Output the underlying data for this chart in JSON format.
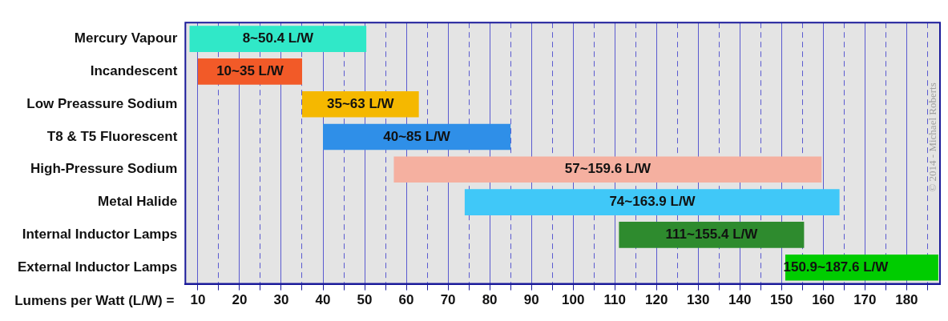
{
  "chart_data": {
    "type": "bar",
    "orientation": "horizontal",
    "xlabel": "Lumens per Watt (L/W) =",
    "categories": [
      "Mercury Vapour",
      "Incandescent",
      "Low Preassure Sodium",
      "T8 & T5 Fluorescent",
      "High-Pressure Sodium",
      "Metal Halide",
      "Internal Inductor Lamps",
      "External Inductor Lamps"
    ],
    "base": [
      8,
      10,
      35,
      40,
      57,
      74,
      111,
      150.9
    ],
    "values": [
      42.4,
      25,
      28,
      45,
      102.6,
      89.9,
      44.4,
      36.7
    ],
    "colors": [
      "#30e8c8",
      "#f25a28",
      "#f5b800",
      "#2f8fe8",
      "#f5b0a0",
      "#40c8f8",
      "#2e8b2e",
      "#00cc00"
    ],
    "xlim": [
      7,
      188
    ],
    "xticks": [
      10,
      {
        "value": 15,
        "label": null
      },
      20,
      {
        "value": 25,
        "label": null
      },
      30,
      {
        "value": 35,
        "label": null
      },
      40,
      {
        "value": 45,
        "label": null
      },
      50,
      {
        "value": 55,
        "label": null
      },
      60,
      {
        "value": 65,
        "label": null
      },
      70,
      {
        "value": 75,
        "label": null
      },
      80,
      {
        "value": 85,
        "label": null
      },
      90,
      {
        "value": 95,
        "label": null
      },
      100,
      {
        "value": 105,
        "label": null
      },
      110,
      {
        "value": 115,
        "label": null
      },
      120,
      {
        "value": 125,
        "label": null
      },
      130,
      {
        "value": 135,
        "label": null
      },
      140,
      {
        "value": 145,
        "label": null
      },
      150,
      {
        "value": 155,
        "label": null
      },
      160,
      {
        "value": 165,
        "label": null
      },
      170,
      {
        "value": 175,
        "label": null
      },
      180,
      {
        "value": 185,
        "label": null
      }
    ],
    "grid": "x",
    "legend": false,
    "annotations": [
      {
        "text": "8~50.4 L/W",
        "x": 29.2,
        "y": "Mercury Vapour"
      },
      {
        "text": "10~35 L/W",
        "x": 22.5,
        "y": "Incandescent"
      },
      {
        "text": "35~63 L/W",
        "x": 49,
        "y": "Low Preassure Sodium"
      },
      {
        "text": "40~85 L/W",
        "x": 62.5,
        "y": "T8 & T5 Fluorescent"
      },
      {
        "text": "57~159.6 L/W",
        "x": 108.3,
        "y": "High-Pressure Sodium"
      },
      {
        "text": "74~163.9 L/W",
        "x": 119,
        "y": "Metal Halide"
      },
      {
        "text": "111~155.4 L/W",
        "x": 133.2,
        "y": "Internal Inductor Lamps"
      },
      {
        "text": "150.9~187.6 L/W",
        "x": 163,
        "y": "External Inductor Lamps"
      },
      "© 2014 - Michael Roberts"
    ]
  }
}
